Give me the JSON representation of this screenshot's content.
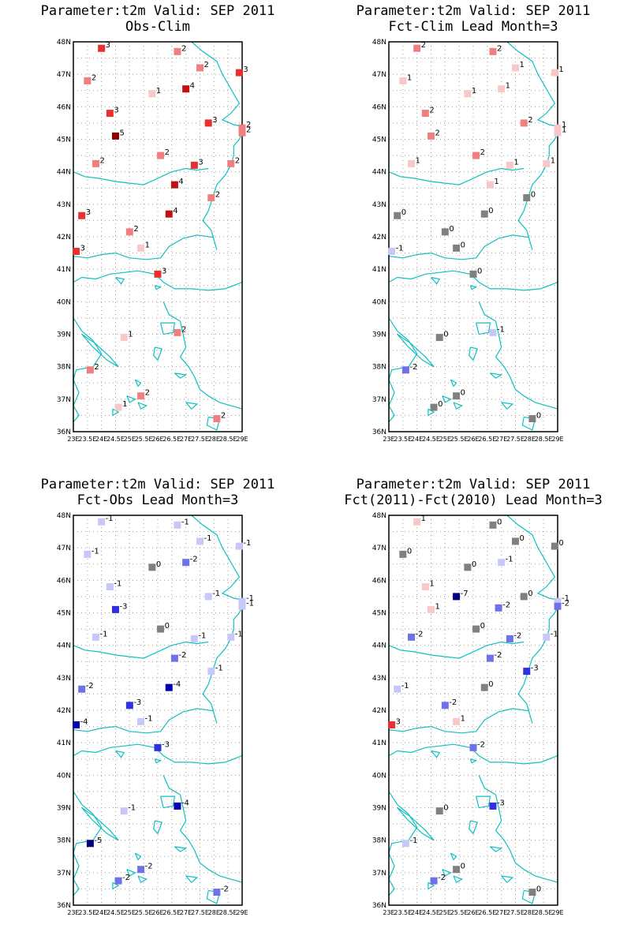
{
  "panels": [
    {
      "title_line1": "Parameter:t2m Valid: SEP 2011",
      "title_line2": "Obs-Clim",
      "stations": [
        {
          "lon": 24.0,
          "lat": 47.8,
          "v": 3
        },
        {
          "lon": 26.7,
          "lat": 47.7,
          "v": 2
        },
        {
          "lon": 27.5,
          "lat": 47.2,
          "v": 2
        },
        {
          "lon": 28.9,
          "lat": 47.05,
          "v": 3
        },
        {
          "lon": 23.5,
          "lat": 46.8,
          "v": 2
        },
        {
          "lon": 27.0,
          "lat": 46.55,
          "v": 4
        },
        {
          "lon": 25.8,
          "lat": 46.4,
          "v": 1
        },
        {
          "lon": 24.3,
          "lat": 45.8,
          "v": 3
        },
        {
          "lon": 27.8,
          "lat": 45.5,
          "v": 3
        },
        {
          "lon": 29.0,
          "lat": 45.35,
          "v": 2
        },
        {
          "lon": 29.0,
          "lat": 45.2,
          "v": 2
        },
        {
          "lon": 24.5,
          "lat": 45.1,
          "v": 5
        },
        {
          "lon": 26.1,
          "lat": 44.5,
          "v": 2
        },
        {
          "lon": 23.8,
          "lat": 44.25,
          "v": 2
        },
        {
          "lon": 27.3,
          "lat": 44.2,
          "v": 3
        },
        {
          "lon": 28.6,
          "lat": 44.25,
          "v": 2
        },
        {
          "lon": 26.6,
          "lat": 43.6,
          "v": 4
        },
        {
          "lon": 27.9,
          "lat": 43.2,
          "v": 2
        },
        {
          "lon": 23.3,
          "lat": 42.65,
          "v": 3
        },
        {
          "lon": 26.4,
          "lat": 42.7,
          "v": 4
        },
        {
          "lon": 25.0,
          "lat": 42.15,
          "v": 2
        },
        {
          "lon": 25.4,
          "lat": 41.65,
          "v": 1
        },
        {
          "lon": 23.1,
          "lat": 41.55,
          "v": 3
        },
        {
          "lon": 26.0,
          "lat": 40.85,
          "v": 3
        },
        {
          "lon": 26.7,
          "lat": 39.05,
          "v": 2
        },
        {
          "lon": 24.8,
          "lat": 38.9,
          "v": 1
        },
        {
          "lon": 23.6,
          "lat": 37.9,
          "v": 2
        },
        {
          "lon": 25.4,
          "lat": 37.1,
          "v": 2
        },
        {
          "lon": 24.6,
          "lat": 36.75,
          "v": 1
        },
        {
          "lon": 28.1,
          "lat": 36.4,
          "v": 2
        }
      ]
    },
    {
      "title_line1": "Parameter:t2m Valid: SEP 2011",
      "title_line2": "Fct-Clim Lead Month=3",
      "stations": [
        {
          "lon": 24.0,
          "lat": 47.8,
          "v": 2
        },
        {
          "lon": 26.7,
          "lat": 47.7,
          "v": 2
        },
        {
          "lon": 27.5,
          "lat": 47.2,
          "v": 1
        },
        {
          "lon": 28.9,
          "lat": 47.05,
          "v": 1
        },
        {
          "lon": 23.5,
          "lat": 46.8,
          "v": 1
        },
        {
          "lon": 27.0,
          "lat": 46.55,
          "v": 1
        },
        {
          "lon": 25.8,
          "lat": 46.4,
          "v": 1
        },
        {
          "lon": 24.3,
          "lat": 45.8,
          "v": 2
        },
        {
          "lon": 27.8,
          "lat": 45.5,
          "v": 2
        },
        {
          "lon": 29.0,
          "lat": 45.35,
          "v": 1
        },
        {
          "lon": 29.0,
          "lat": 45.2,
          "v": 1
        },
        {
          "lon": 24.5,
          "lat": 45.1,
          "v": 2
        },
        {
          "lon": 26.1,
          "lat": 44.5,
          "v": 2
        },
        {
          "lon": 23.8,
          "lat": 44.25,
          "v": 1
        },
        {
          "lon": 27.3,
          "lat": 44.2,
          "v": 1
        },
        {
          "lon": 28.6,
          "lat": 44.25,
          "v": 1
        },
        {
          "lon": 26.6,
          "lat": 43.6,
          "v": 1
        },
        {
          "lon": 27.9,
          "lat": 43.2,
          "v": 0
        },
        {
          "lon": 23.3,
          "lat": 42.65,
          "v": 0
        },
        {
          "lon": 26.4,
          "lat": 42.7,
          "v": 0
        },
        {
          "lon": 25.0,
          "lat": 42.15,
          "v": 0
        },
        {
          "lon": 25.4,
          "lat": 41.65,
          "v": 0
        },
        {
          "lon": 23.1,
          "lat": 41.55,
          "v": -1
        },
        {
          "lon": 26.0,
          "lat": 40.85,
          "v": 0
        },
        {
          "lon": 26.7,
          "lat": 39.05,
          "v": -1
        },
        {
          "lon": 24.8,
          "lat": 38.9,
          "v": 0
        },
        {
          "lon": 23.6,
          "lat": 37.9,
          "v": -2
        },
        {
          "lon": 25.4,
          "lat": 37.1,
          "v": 0
        },
        {
          "lon": 24.6,
          "lat": 36.75,
          "v": 0
        },
        {
          "lon": 28.1,
          "lat": 36.4,
          "v": 0
        }
      ]
    },
    {
      "title_line1": "Parameter:t2m Valid: SEP 2011",
      "title_line2": "Fct-Obs Lead Month=3",
      "stations": [
        {
          "lon": 24.0,
          "lat": 47.8,
          "v": -1
        },
        {
          "lon": 26.7,
          "lat": 47.7,
          "v": -1
        },
        {
          "lon": 27.5,
          "lat": 47.2,
          "v": -1
        },
        {
          "lon": 28.9,
          "lat": 47.05,
          "v": -1
        },
        {
          "lon": 23.5,
          "lat": 46.8,
          "v": -1
        },
        {
          "lon": 27.0,
          "lat": 46.55,
          "v": -2
        },
        {
          "lon": 25.8,
          "lat": 46.4,
          "v": 0
        },
        {
          "lon": 24.3,
          "lat": 45.8,
          "v": -1
        },
        {
          "lon": 27.8,
          "lat": 45.5,
          "v": -1
        },
        {
          "lon": 29.0,
          "lat": 45.35,
          "v": -1
        },
        {
          "lon": 29.0,
          "lat": 45.2,
          "v": -1
        },
        {
          "lon": 24.5,
          "lat": 45.1,
          "v": -3
        },
        {
          "lon": 26.1,
          "lat": 44.5,
          "v": 0
        },
        {
          "lon": 23.8,
          "lat": 44.25,
          "v": -1
        },
        {
          "lon": 27.3,
          "lat": 44.2,
          "v": -1
        },
        {
          "lon": 28.6,
          "lat": 44.25,
          "v": -1
        },
        {
          "lon": 26.6,
          "lat": 43.6,
          "v": -2
        },
        {
          "lon": 27.9,
          "lat": 43.2,
          "v": -1
        },
        {
          "lon": 23.3,
          "lat": 42.65,
          "v": -2
        },
        {
          "lon": 26.4,
          "lat": 42.7,
          "v": -4
        },
        {
          "lon": 25.0,
          "lat": 42.15,
          "v": -3
        },
        {
          "lon": 25.4,
          "lat": 41.65,
          "v": -1
        },
        {
          "lon": 23.1,
          "lat": 41.55,
          "v": -4
        },
        {
          "lon": 26.0,
          "lat": 40.85,
          "v": -3
        },
        {
          "lon": 26.7,
          "lat": 39.05,
          "v": -4
        },
        {
          "lon": 24.8,
          "lat": 38.9,
          "v": -1
        },
        {
          "lon": 23.6,
          "lat": 37.9,
          "v": -5
        },
        {
          "lon": 25.4,
          "lat": 37.1,
          "v": -2
        },
        {
          "lon": 24.6,
          "lat": 36.75,
          "v": -2
        },
        {
          "lon": 28.1,
          "lat": 36.4,
          "v": -2
        }
      ]
    },
    {
      "title_line1": "Parameter:t2m Valid: SEP 2011",
      "title_line2": "Fct(2011)-Fct(2010) Lead Month=3",
      "stations": [
        {
          "lon": 24.0,
          "lat": 47.8,
          "v": 1
        },
        {
          "lon": 26.7,
          "lat": 47.7,
          "v": 0
        },
        {
          "lon": 27.5,
          "lat": 47.2,
          "v": 0
        },
        {
          "lon": 28.9,
          "lat": 47.05,
          "v": 0
        },
        {
          "lon": 23.5,
          "lat": 46.8,
          "v": 0
        },
        {
          "lon": 27.0,
          "lat": 46.55,
          "v": -1
        },
        {
          "lon": 25.8,
          "lat": 46.4,
          "v": 0
        },
        {
          "lon": 24.3,
          "lat": 45.8,
          "v": 1
        },
        {
          "lon": 27.8,
          "lat": 45.5,
          "v": 0
        },
        {
          "lon": 29.0,
          "lat": 45.35,
          "v": -1
        },
        {
          "lon": 29.0,
          "lat": 45.2,
          "v": -2
        },
        {
          "lon": 24.5,
          "lat": 45.1,
          "v": 1
        },
        {
          "lon": 25.4,
          "lat": 45.5,
          "v": -7
        },
        {
          "lon": 26.1,
          "lat": 44.5,
          "v": 0
        },
        {
          "lon": 26.9,
          "lat": 45.15,
          "v": -2
        },
        {
          "lon": 23.8,
          "lat": 44.25,
          "v": -2
        },
        {
          "lon": 27.3,
          "lat": 44.2,
          "v": -2
        },
        {
          "lon": 28.6,
          "lat": 44.25,
          "v": -1
        },
        {
          "lon": 26.6,
          "lat": 43.6,
          "v": -2
        },
        {
          "lon": 27.9,
          "lat": 43.2,
          "v": -3
        },
        {
          "lon": 23.3,
          "lat": 42.65,
          "v": -1
        },
        {
          "lon": 26.4,
          "lat": 42.7,
          "v": 0
        },
        {
          "lon": 25.0,
          "lat": 42.15,
          "v": -2
        },
        {
          "lon": 25.4,
          "lat": 41.65,
          "v": 1
        },
        {
          "lon": 23.1,
          "lat": 41.55,
          "v": 3
        },
        {
          "lon": 26.0,
          "lat": 40.85,
          "v": -2
        },
        {
          "lon": 26.7,
          "lat": 39.05,
          "v": -3
        },
        {
          "lon": 24.8,
          "lat": 38.9,
          "v": 0
        },
        {
          "lon": 23.6,
          "lat": 37.9,
          "v": -1
        },
        {
          "lon": 25.4,
          "lat": 37.1,
          "v": 0
        },
        {
          "lon": 24.6,
          "lat": 36.75,
          "v": -2
        },
        {
          "lon": 28.1,
          "lat": 36.4,
          "v": 0
        }
      ]
    }
  ],
  "map": {
    "lon_range": [
      23,
      29
    ],
    "lat_range": [
      36,
      48
    ],
    "lon_tick_labels": [
      "23E",
      "23.5E",
      "24E",
      "24.5E",
      "25E",
      "25.5E",
      "26E",
      "26.5E",
      "27E",
      "27.5E",
      "28E",
      "28.5E",
      "29E"
    ],
    "lat_tick_labels": [
      "36N",
      "37N",
      "38N",
      "39N",
      "40N",
      "41N",
      "42N",
      "43N",
      "44N",
      "45N",
      "46N",
      "47N",
      "48N"
    ],
    "coast_color": "#10c0c0",
    "grid": "dotted"
  },
  "colors": {
    "pos1": "#f8c8c8",
    "pos2": "#f08080",
    "pos3": "#e83030",
    "pos4": "#c01010",
    "pos5": "#8c0000",
    "zero": "#808080",
    "neg1": "#c8c8f8",
    "neg2": "#7070e8",
    "neg3": "#3030e0",
    "neg4": "#0000b0",
    "neg5": "#000080"
  }
}
